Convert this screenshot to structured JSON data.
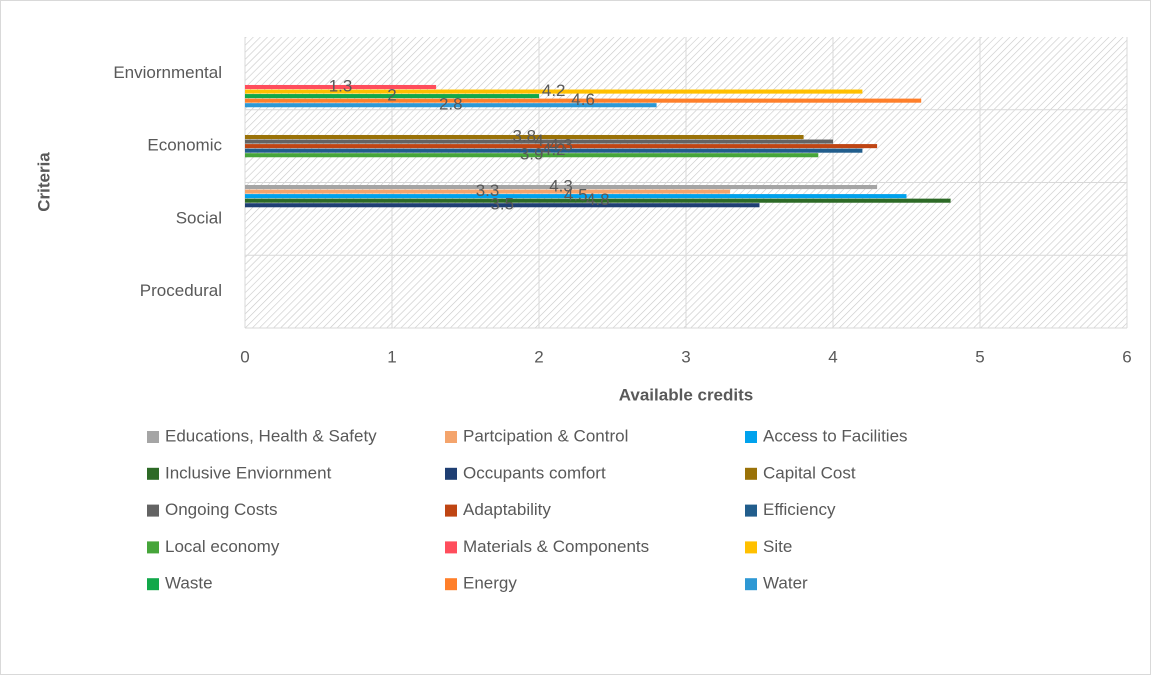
{
  "chart_data": {
    "type": "bar",
    "orientation": "horizontal",
    "x_label": "Available credits",
    "y_label": "Criteria",
    "categories": [
      "Enviornmental",
      "Economic",
      "Social",
      "Procedural"
    ],
    "xlim": [
      0,
      6
    ],
    "xticks": [
      0,
      1,
      2,
      3,
      4,
      5,
      6
    ],
    "grid": true,
    "series": [
      {
        "name": "Educations, Health & Safety",
        "color": "#a5a5a5",
        "values": [
          null,
          null,
          4.3,
          null
        ]
      },
      {
        "name": "Partcipation & Control",
        "color": "#f4a46c",
        "values": [
          null,
          null,
          3.3,
          null
        ]
      },
      {
        "name": "Access to Facilities",
        "color": "#00a2ed",
        "values": [
          null,
          null,
          4.5,
          null
        ]
      },
      {
        "name": "Inclusive Enviornment",
        "color": "#2d6a26",
        "values": [
          null,
          null,
          4.8,
          null
        ]
      },
      {
        "name": "Occupants comfort",
        "color": "#1f3f73",
        "values": [
          null,
          null,
          3.5,
          null
        ]
      },
      {
        "name": "Capital Cost",
        "color": "#9a7208",
        "values": [
          null,
          3.8,
          null,
          null
        ]
      },
      {
        "name": "Ongoing Costs",
        "color": "#636363",
        "values": [
          null,
          4,
          null,
          null
        ]
      },
      {
        "name": "Adaptability",
        "color": "#bf4513",
        "values": [
          null,
          4.3,
          null,
          null
        ]
      },
      {
        "name": "Efficiency",
        "color": "#215d8c",
        "values": [
          null,
          4.2,
          null,
          null
        ]
      },
      {
        "name": "Local economy",
        "color": "#46a53a",
        "values": [
          null,
          3.9,
          null,
          null
        ]
      },
      {
        "name": "Materials & Components",
        "color": "#ff4d5c",
        "values": [
          1.3,
          null,
          null,
          null
        ]
      },
      {
        "name": "Site",
        "color": "#ffc000",
        "values": [
          4.2,
          null,
          null,
          null
        ]
      },
      {
        "name": "Waste",
        "color": "#12a84a",
        "values": [
          2,
          null,
          null,
          null
        ]
      },
      {
        "name": "Energy",
        "color": "#ff7f2a",
        "values": [
          4.6,
          null,
          null,
          null
        ]
      },
      {
        "name": "Water",
        "color": "#2e98d4",
        "values": [
          2.8,
          null,
          null,
          null
        ]
      }
    ]
  }
}
